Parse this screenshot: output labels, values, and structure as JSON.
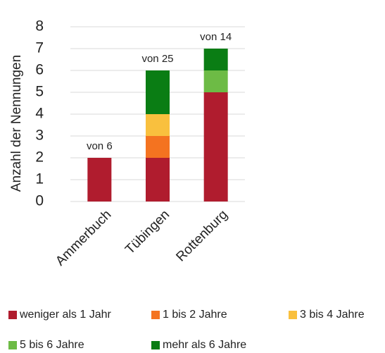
{
  "chart_data": {
    "type": "stacked_bar",
    "y_label": "Anzahl der Nennungen",
    "categories": [
      "Ammerbuch",
      "Tübingen",
      "Rottenburg"
    ],
    "annotations": [
      "von 6",
      "von 25",
      "von 14"
    ],
    "series": [
      {
        "name": "weniger als 1 Jahr",
        "color": "#b01c2e",
        "values": [
          2,
          2,
          5
        ]
      },
      {
        "name": "1 bis 2 Jahre",
        "color": "#f47320",
        "values": [
          null,
          1,
          null
        ]
      },
      {
        "name": "3 bis 4 Jahre",
        "color": "#f9c03e",
        "values": [
          null,
          1,
          null
        ]
      },
      {
        "name": "5 bis 6 Jahre",
        "color": "#6dbb45",
        "values": [
          null,
          null,
          1
        ]
      },
      {
        "name": "mehr als 6 Jahre",
        "color": "#0a7d14",
        "values": [
          null,
          2,
          1
        ]
      }
    ],
    "ylim": [
      0,
      8
    ],
    "yticks": [
      0,
      1,
      2,
      3,
      4,
      5,
      6,
      7,
      8
    ],
    "grid": true,
    "legend": "bottom"
  }
}
